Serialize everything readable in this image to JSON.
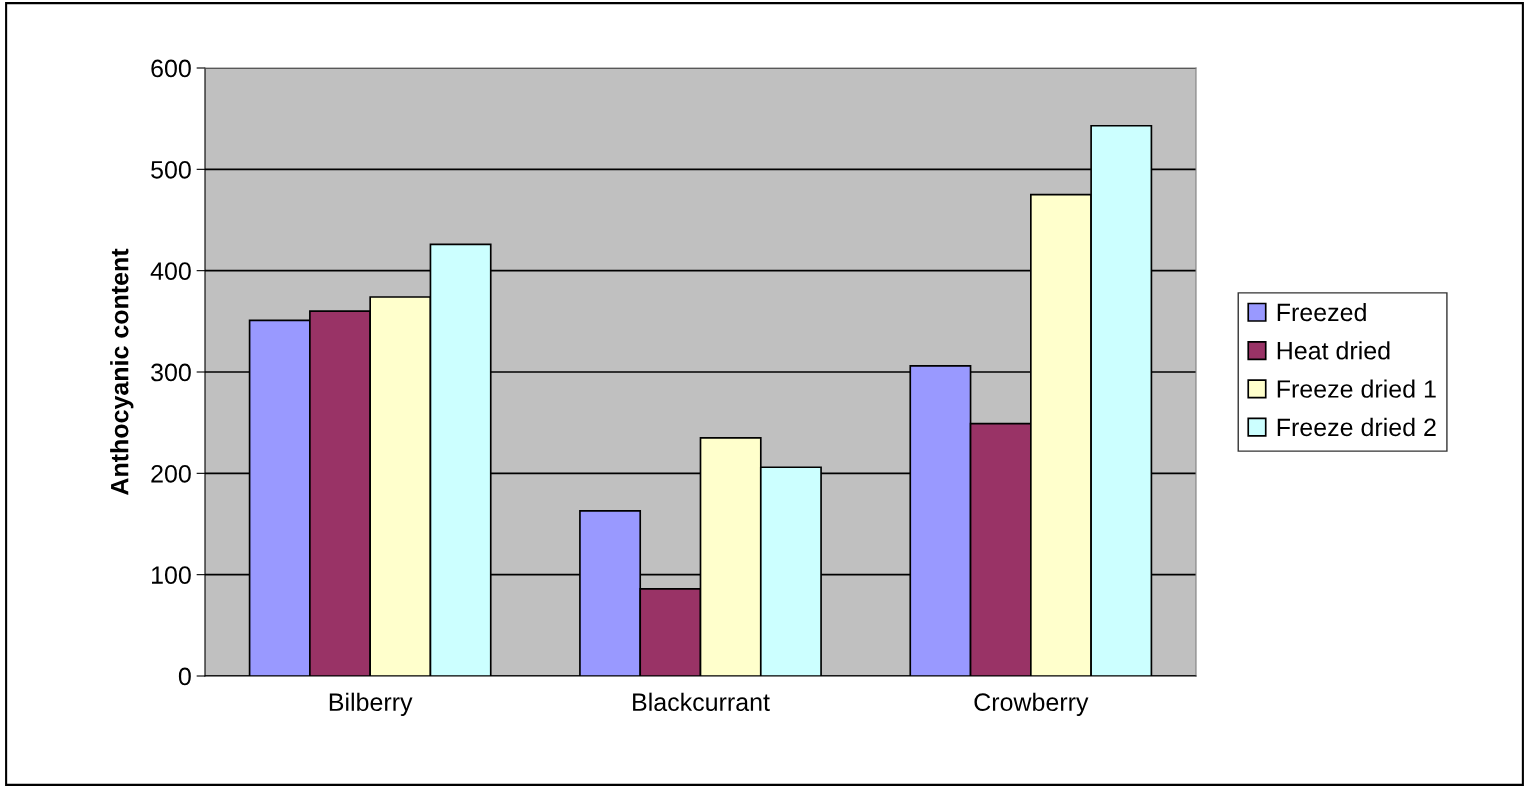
{
  "chart_data": {
    "type": "bar",
    "ylabel": "Anthocyanic content",
    "categories": [
      "Bilberry",
      "Blackcurrant",
      "Crowberry"
    ],
    "series": [
      {
        "name": "Freezed",
        "color": "#9999ff",
        "values": [
          351,
          163,
          306
        ]
      },
      {
        "name": "Heat dried",
        "color": "#993366",
        "values": [
          360,
          86,
          249
        ]
      },
      {
        "name": "Freeze dried 1",
        "color": "#ffffcc",
        "values": [
          374,
          235,
          475
        ]
      },
      {
        "name": "Freeze dried 2",
        "color": "#ccffff",
        "values": [
          426,
          206,
          543
        ]
      }
    ],
    "ylim": [
      0,
      600
    ],
    "yticks": [
      0,
      100,
      200,
      300,
      400,
      500,
      600
    ],
    "grid": "y",
    "legend": "right"
  }
}
